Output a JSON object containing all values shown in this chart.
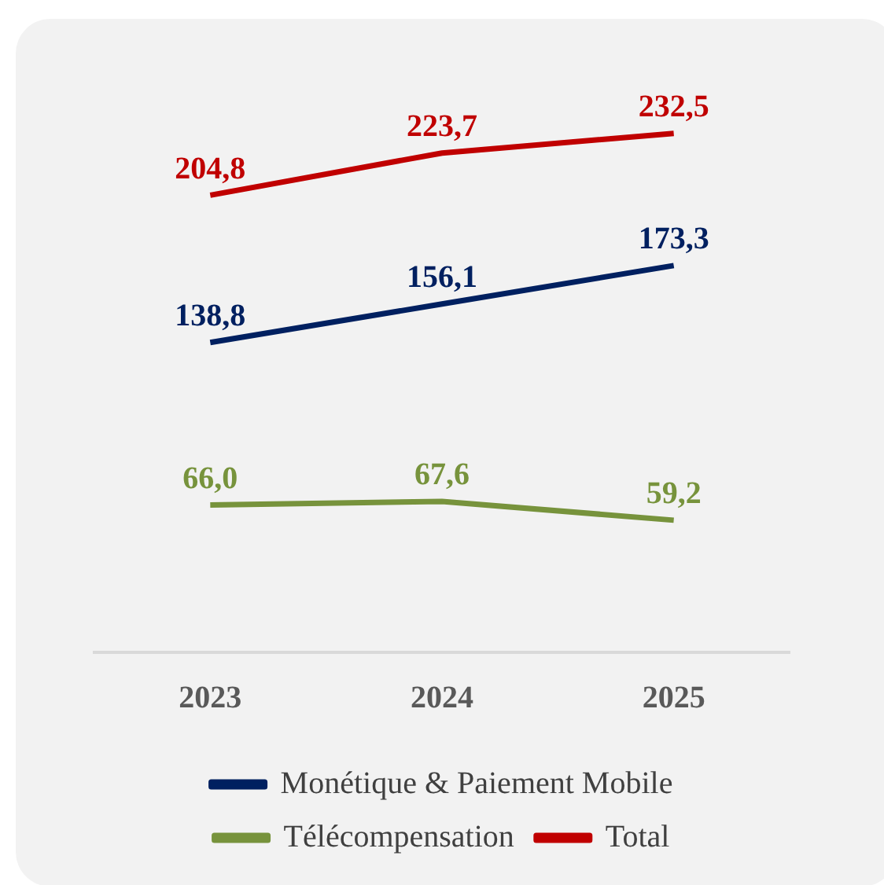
{
  "chart_data": {
    "type": "line",
    "categories": [
      "2023",
      "2024",
      "2025"
    ],
    "series": [
      {
        "name": "Monétique & Paiement Mobile",
        "color": "#002060",
        "values": [
          138.8,
          156.1,
          173.3
        ],
        "value_labels": [
          "138,8",
          "156,1",
          "173,3"
        ]
      },
      {
        "name": "Télécompensation",
        "color": "#77933c",
        "values": [
          66.0,
          67.6,
          59.2
        ],
        "value_labels": [
          "66,0",
          "67,6",
          "59,2"
        ]
      },
      {
        "name": "Total",
        "color": "#c00000",
        "values": [
          204.8,
          223.7,
          232.5
        ],
        "value_labels": [
          "204,8",
          "223,7",
          "232,5"
        ]
      }
    ],
    "legend": "bottom",
    "grid": false,
    "marker": "none",
    "line_style": "solid"
  }
}
